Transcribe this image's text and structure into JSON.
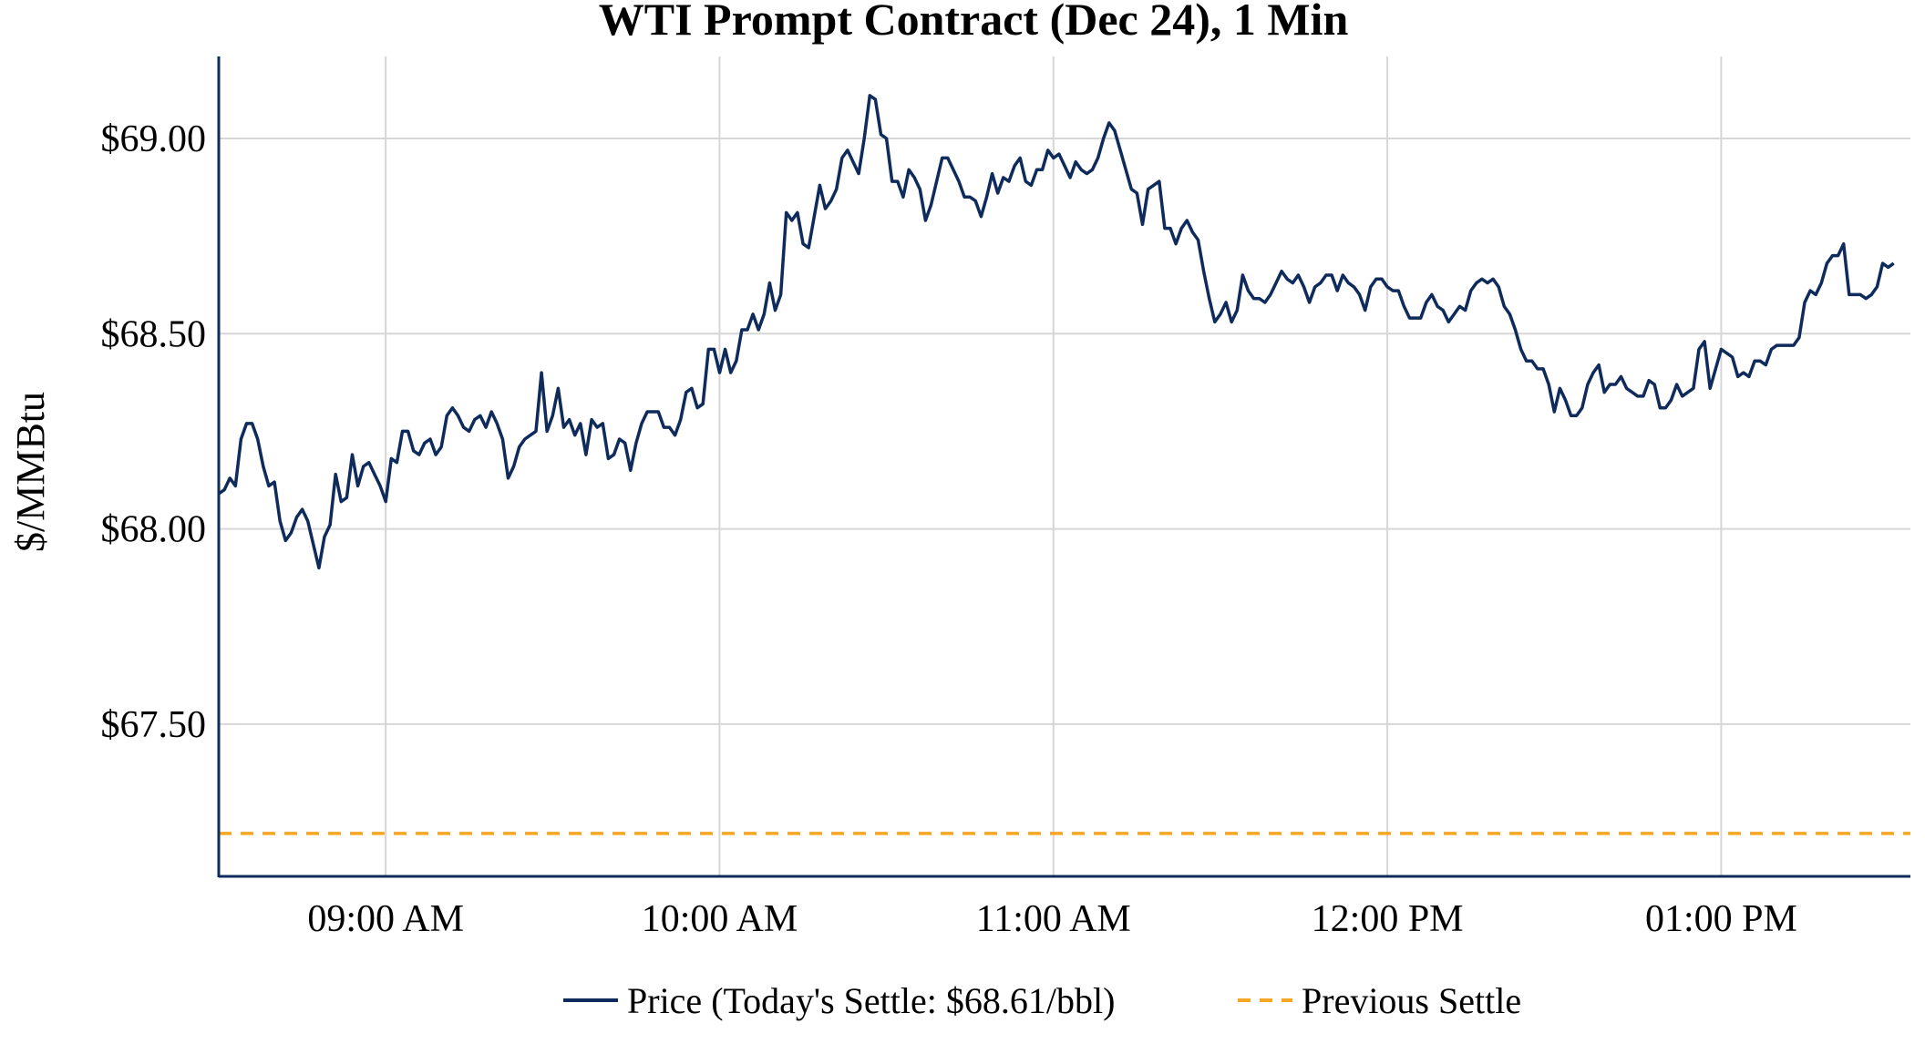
{
  "chart_data": {
    "type": "line",
    "title": "WTI Prompt Contract (Dec 24), 1 Min",
    "xlabel": "",
    "ylabel": "$/MMBtu",
    "x_time_range": [
      "08:30",
      "13:34"
    ],
    "x_ticks": [
      {
        "time": "09:00",
        "label": "09:00 AM"
      },
      {
        "time": "10:00",
        "label": "10:00 AM"
      },
      {
        "time": "11:00",
        "label": "11:00 AM"
      },
      {
        "time": "12:00",
        "label": "12:00 PM"
      },
      {
        "time": "13:00",
        "label": "01:00 PM"
      }
    ],
    "ylim": [
      67.11,
      69.21
    ],
    "y_ticks": [
      {
        "value": 67.5,
        "label": "$67.50"
      },
      {
        "value": 68.0,
        "label": "$68.00"
      },
      {
        "value": 68.5,
        "label": "$68.50"
      },
      {
        "value": 69.0,
        "label": "$69.00"
      }
    ],
    "grid": true,
    "legend_position": "bottom-center",
    "series": [
      {
        "name": "Price (Today's Settle: $68.61/bbl)",
        "style": "solid",
        "color": "#0f2b5b",
        "start_time": "08:30",
        "interval_minutes": 1,
        "values": [
          68.09,
          68.1,
          68.13,
          68.11,
          68.23,
          68.27,
          68.27,
          68.23,
          68.16,
          68.11,
          68.12,
          68.02,
          67.97,
          67.99,
          68.03,
          68.05,
          68.02,
          67.96,
          67.9,
          67.98,
          68.01,
          68.14,
          68.07,
          68.08,
          68.19,
          68.11,
          68.16,
          68.17,
          68.14,
          68.11,
          68.07,
          68.18,
          68.17,
          68.25,
          68.25,
          68.2,
          68.19,
          68.22,
          68.23,
          68.19,
          68.21,
          68.29,
          68.31,
          68.29,
          68.26,
          68.25,
          68.28,
          68.29,
          68.26,
          68.3,
          68.27,
          68.23,
          68.13,
          68.16,
          68.21,
          68.23,
          68.24,
          68.25,
          68.4,
          68.25,
          68.29,
          68.36,
          68.26,
          68.28,
          68.24,
          68.27,
          68.19,
          68.28,
          68.26,
          68.27,
          68.18,
          68.19,
          68.23,
          68.22,
          68.15,
          68.22,
          68.27,
          68.3,
          68.3,
          68.3,
          68.26,
          68.26,
          68.24,
          68.28,
          68.35,
          68.36,
          68.31,
          68.32,
          68.46,
          68.46,
          68.4,
          68.46,
          68.4,
          68.43,
          68.51,
          68.51,
          68.55,
          68.51,
          68.55,
          68.63,
          68.56,
          68.6,
          68.81,
          68.79,
          68.81,
          68.73,
          68.72,
          68.8,
          68.88,
          68.82,
          68.84,
          68.87,
          68.95,
          68.97,
          68.94,
          68.91,
          69.0,
          69.11,
          69.1,
          69.01,
          69.0,
          68.89,
          68.89,
          68.85,
          68.92,
          68.9,
          68.87,
          68.79,
          68.83,
          68.89,
          68.95,
          68.95,
          68.92,
          68.89,
          68.85,
          68.85,
          68.84,
          68.8,
          68.85,
          68.91,
          68.86,
          68.9,
          68.89,
          68.93,
          68.95,
          68.89,
          68.88,
          68.92,
          68.92,
          68.97,
          68.95,
          68.96,
          68.93,
          68.9,
          68.94,
          68.92,
          68.91,
          68.92,
          68.95,
          69.0,
          69.04,
          69.02,
          68.97,
          68.92,
          68.87,
          68.86,
          68.78,
          68.87,
          68.88,
          68.89,
          68.77,
          68.77,
          68.73,
          68.77,
          68.79,
          68.76,
          68.74,
          68.66,
          68.59,
          68.53,
          68.55,
          68.58,
          68.53,
          68.56,
          68.65,
          68.61,
          68.59,
          68.59,
          68.58,
          68.6,
          68.63,
          68.66,
          68.64,
          68.63,
          68.65,
          68.62,
          68.58,
          68.62,
          68.63,
          68.65,
          68.65,
          68.61,
          68.65,
          68.63,
          68.62,
          68.6,
          68.56,
          68.62,
          68.64,
          68.64,
          68.62,
          68.61,
          68.61,
          68.57,
          68.54,
          68.54,
          68.54,
          68.58,
          68.6,
          68.57,
          68.56,
          68.53,
          68.55,
          68.57,
          68.56,
          68.61,
          68.63,
          68.64,
          68.63,
          68.64,
          68.62,
          68.57,
          68.55,
          68.51,
          68.46,
          68.43,
          68.43,
          68.41,
          68.41,
          68.37,
          68.3,
          68.36,
          68.33,
          68.29,
          68.29,
          68.31,
          68.37,
          68.4,
          68.42,
          68.35,
          68.37,
          68.37,
          68.39,
          68.36,
          68.35,
          68.34,
          68.34,
          68.38,
          68.37,
          68.31,
          68.31,
          68.33,
          68.37,
          68.34,
          68.35,
          68.36,
          68.46,
          68.48,
          68.36,
          68.41,
          68.46,
          68.45,
          68.44,
          68.39,
          68.4,
          68.39,
          68.43,
          68.43,
          68.42,
          68.46,
          68.47,
          68.47,
          68.47,
          68.47,
          68.49,
          68.58,
          68.61,
          68.6,
          68.63,
          68.68,
          68.7,
          68.7,
          68.73,
          68.6,
          68.6,
          68.6,
          68.59,
          68.6,
          68.62,
          68.68,
          68.67,
          68.68
        ]
      },
      {
        "name": "Previous Settle",
        "style": "dashed",
        "color": "#f5a623",
        "value": 67.22
      }
    ]
  }
}
